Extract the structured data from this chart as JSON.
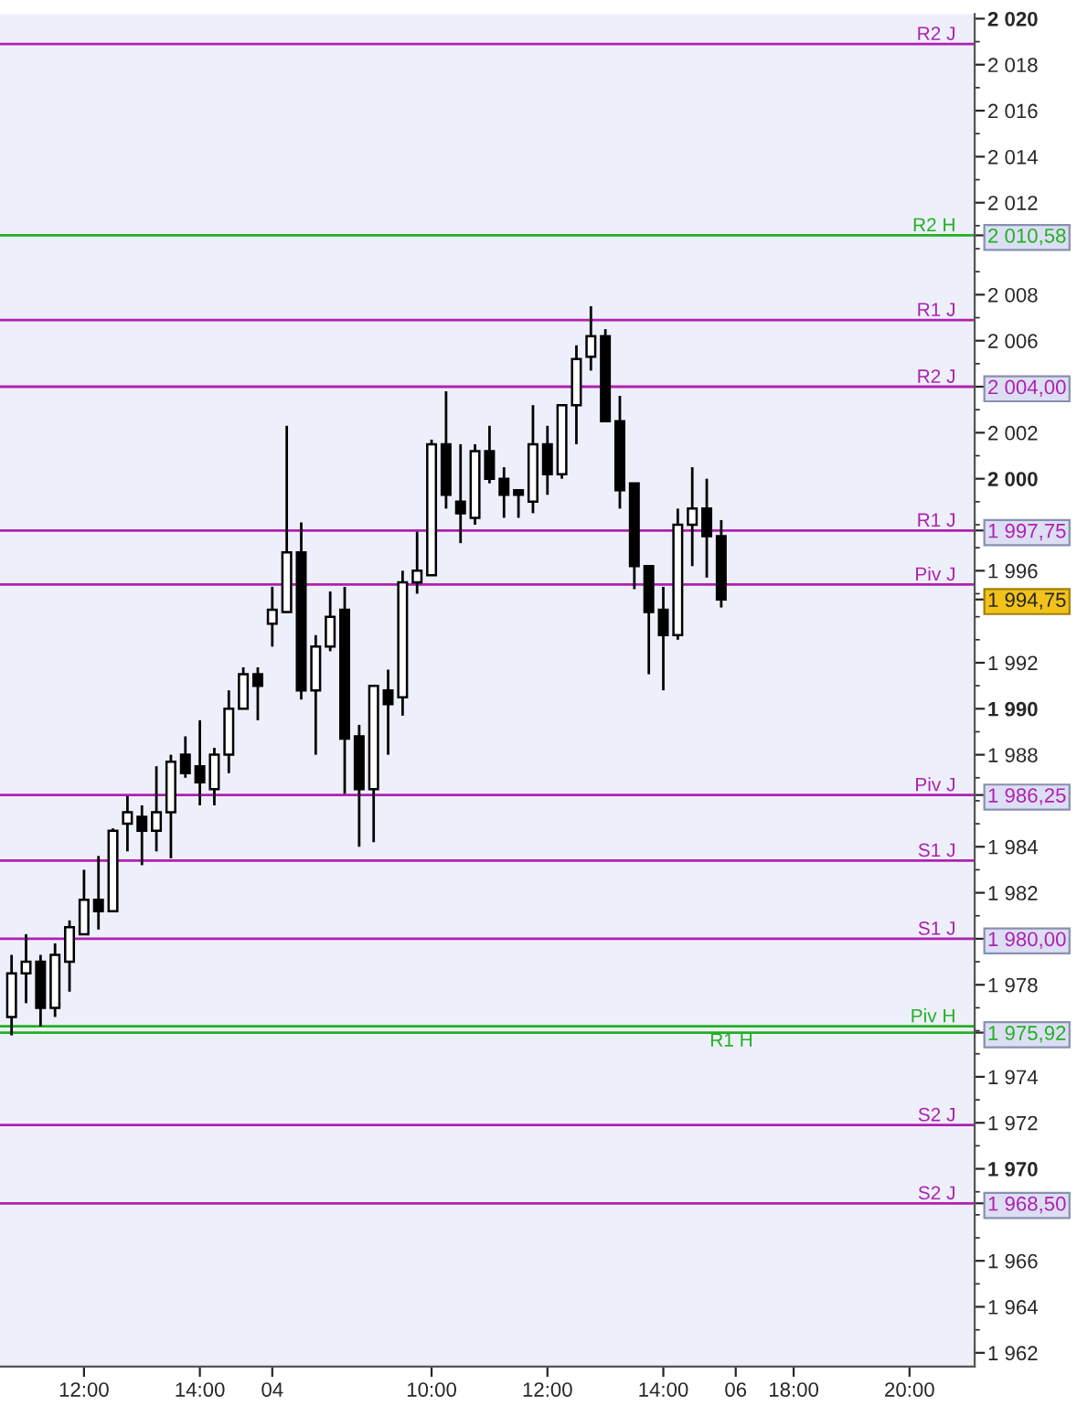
{
  "chart_data": {
    "type": "candlestick",
    "categories": [
      null,
      null,
      null,
      null,
      null,
      "12:00",
      null,
      null,
      null,
      null,
      null,
      null,
      null,
      "14:00",
      null,
      null,
      null,
      null,
      "04",
      null,
      null,
      null,
      null,
      null,
      null,
      null,
      null,
      null,
      null,
      "10:00",
      null,
      null,
      null,
      null,
      null,
      null,
      null,
      "12:00",
      null,
      null,
      null,
      null,
      null,
      null,
      null,
      "14:00",
      null,
      null,
      null,
      null,
      "06",
      null,
      null,
      null,
      "18:00",
      null,
      null,
      null,
      null,
      null,
      null,
      null,
      "20:00",
      null,
      null,
      null,
      null
    ],
    "ohlc": [
      [
        1976.6,
        1979.3,
        1975.8,
        1978.5
      ],
      [
        1978.5,
        1980.2,
        1977.2,
        1979.0
      ],
      [
        1979.0,
        1979.3,
        1976.2,
        1977.0
      ],
      [
        1977.0,
        1979.8,
        1976.6,
        1979.3
      ],
      [
        1979.0,
        1980.8,
        1977.7,
        1980.5
      ],
      [
        1980.2,
        1983.0,
        1980.2,
        1981.7
      ],
      [
        1981.7,
        1983.6,
        1980.4,
        1981.2
      ],
      [
        1981.2,
        1984.8,
        1981.2,
        1984.7
      ],
      [
        1985.0,
        1986.2,
        1983.8,
        1985.5
      ],
      [
        1985.3,
        1985.8,
        1983.2,
        1984.7
      ],
      [
        1984.7,
        1987.5,
        1983.8,
        1985.5
      ],
      [
        1985.5,
        1988.0,
        1983.5,
        1987.7
      ],
      [
        1988.0,
        1988.8,
        1987.0,
        1987.2
      ],
      [
        1987.5,
        1989.5,
        1985.8,
        1986.8
      ],
      [
        1986.5,
        1988.3,
        1985.8,
        1988.0
      ],
      [
        1988.0,
        1990.8,
        1987.2,
        1990.0
      ],
      [
        1990.0,
        1991.8,
        1990.0,
        1991.5
      ],
      [
        1991.5,
        1991.8,
        1989.5,
        1991.0
      ],
      [
        1993.7,
        1995.3,
        1992.7,
        1994.3
      ],
      [
        1994.2,
        2002.3,
        1994.2,
        1996.8
      ],
      [
        1996.8,
        1998.1,
        1990.4,
        1990.8
      ],
      [
        1990.8,
        1993.2,
        1988.0,
        1992.7
      ],
      [
        1992.7,
        1995.1,
        1992.5,
        1994.0
      ],
      [
        1994.3,
        1995.3,
        1986.3,
        1988.7
      ],
      [
        1988.8,
        1989.3,
        1984.0,
        1986.5
      ],
      [
        1986.5,
        1991.0,
        1984.2,
        1991.0
      ],
      [
        1990.8,
        1991.7,
        1988.0,
        1990.2
      ],
      [
        1990.5,
        1996.0,
        1989.7,
        1995.5
      ],
      [
        1995.5,
        1997.7,
        1995.0,
        1996.0
      ],
      [
        1995.8,
        2001.7,
        1995.8,
        2001.5
      ],
      [
        2001.5,
        2003.8,
        1998.7,
        1999.3
      ],
      [
        1999.0,
        2001.5,
        1997.2,
        1998.5
      ],
      [
        1998.3,
        2001.5,
        1998.0,
        2001.2
      ],
      [
        2001.2,
        2002.3,
        1999.8,
        2000.0
      ],
      [
        2000.0,
        2000.5,
        1998.3,
        1999.3
      ],
      [
        1999.5,
        1999.5,
        1998.3,
        1999.3
      ],
      [
        1999.0,
        2003.2,
        1998.5,
        2001.5
      ],
      [
        2001.5,
        2002.3,
        1999.3,
        2000.2
      ],
      [
        2000.2,
        2003.2,
        2000.0,
        2003.2
      ],
      [
        2003.2,
        2005.8,
        2001.5,
        2005.2
      ],
      [
        2005.3,
        2007.5,
        2004.7,
        2006.2
      ],
      [
        2006.2,
        2006.5,
        2002.5,
        2002.5
      ],
      [
        2002.5,
        2003.6,
        1998.7,
        1999.5
      ],
      [
        1999.8,
        1999.8,
        1995.2,
        1996.2
      ],
      [
        1996.2,
        1996.2,
        1991.5,
        1994.2
      ],
      [
        1994.3,
        1995.3,
        1990.8,
        1993.2
      ],
      [
        1993.2,
        1998.7,
        1993.0,
        1998.0
      ],
      [
        1998.0,
        2000.5,
        1996.2,
        1998.7
      ],
      [
        1998.7,
        2000.0,
        1995.7,
        1997.5
      ],
      [
        1997.5,
        1998.2,
        1994.4,
        1994.75
      ],
      null,
      null,
      null,
      null,
      null,
      null,
      null,
      null,
      null,
      null,
      null,
      null,
      null,
      null,
      null,
      null,
      null
    ],
    "ylim": [
      1961.4,
      2020.2
    ],
    "yticks": [
      {
        "value": 2020,
        "label": "2 020"
      },
      {
        "value": 2018,
        "label": "2 018"
      },
      {
        "value": 2016,
        "label": "2 016"
      },
      {
        "value": 2014,
        "label": "2 014"
      },
      {
        "value": 2012,
        "label": "2 012"
      },
      {
        "value": 2010.58,
        "label": "2 010,58"
      },
      {
        "value": 2008,
        "label": "2 008"
      },
      {
        "value": 2006,
        "label": "2 006"
      },
      {
        "value": 2004,
        "label": "2 004,00"
      },
      {
        "value": 2002,
        "label": "2 002"
      },
      {
        "value": 2000,
        "label": "2 000"
      },
      {
        "value": 1997.75,
        "label": "1 997,75"
      },
      {
        "value": 1996,
        "label": "1 996"
      },
      {
        "value": 1994.75,
        "label": "1 994,75"
      },
      {
        "value": 1992,
        "label": "1 992"
      },
      {
        "value": 1990,
        "label": "1 990"
      },
      {
        "value": 1988,
        "label": "1 988"
      },
      {
        "value": 1986.25,
        "label": "1 986,25"
      },
      {
        "value": 1984,
        "label": "1 984"
      },
      {
        "value": 1982,
        "label": "1 982"
      },
      {
        "value": 1980,
        "label": "1 980,00"
      },
      {
        "value": 1978,
        "label": "1 978"
      },
      {
        "value": 1975.92,
        "label": "1 975,92"
      },
      {
        "value": 1974,
        "label": "1 974"
      },
      {
        "value": 1972,
        "label": "1 972"
      },
      {
        "value": 1970,
        "label": "1 970"
      },
      {
        "value": 1968.5,
        "label": "1 968,50"
      },
      {
        "value": 1966,
        "label": "1 966"
      },
      {
        "value": 1964,
        "label": "1 964"
      },
      {
        "value": 1962,
        "label": "1 962"
      }
    ],
    "ref_lines": [
      {
        "axis": "y",
        "value": 2018.9,
        "label": "R2 J",
        "color": "#b020b0"
      },
      {
        "axis": "y",
        "value": 2010.58,
        "label": "R2 H",
        "color": "#22b022"
      },
      {
        "axis": "y",
        "value": 2006.9,
        "label": "R1 J",
        "color": "#b020b0"
      },
      {
        "axis": "y",
        "value": 2004,
        "label": "R2 J",
        "color": "#b020b0"
      },
      {
        "axis": "y",
        "value": 1997.75,
        "label": "R1 J",
        "color": "#b020b0"
      },
      {
        "axis": "y",
        "value": 1995.4,
        "label": "Piv J",
        "color": "#b020b0"
      },
      {
        "axis": "y",
        "value": 1986.25,
        "label": "Piv J",
        "color": "#b020b0"
      },
      {
        "axis": "y",
        "value": 1983.4,
        "label": "S1 J",
        "color": "#b020b0"
      },
      {
        "axis": "y",
        "value": 1980,
        "label": "S1 J",
        "color": "#b020b0"
      },
      {
        "axis": "y",
        "value": 1976.2,
        "label": "Piv H",
        "color": "#22b022"
      },
      {
        "axis": "y",
        "value": 1975.92,
        "label": "R1 H",
        "color": "#22b022"
      },
      {
        "axis": "y",
        "value": 1971.9,
        "label": "S2 J",
        "color": "#b020b0"
      },
      {
        "axis": "y",
        "value": 1968.5,
        "label": "S2 J",
        "color": "#b020b0"
      }
    ]
  }
}
